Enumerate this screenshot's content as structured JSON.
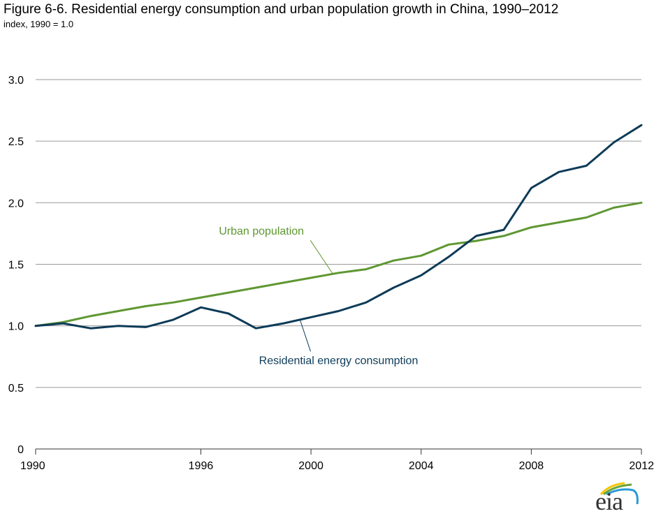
{
  "title": "Figure 6-6. Residential energy consumption and urban population growth in China, 1990–2012",
  "subtitle": "index, 1990 = 1.0",
  "logo": {
    "text": "eia"
  },
  "chart_data": {
    "type": "line",
    "title": "Figure 6-6. Residential energy consumption and urban population growth in China, 1990–2012",
    "subtitle": "index, 1990 = 1.0",
    "xlabel": "",
    "ylabel": "index, 1990 = 1.0",
    "x": [
      1990,
      1991,
      1992,
      1993,
      1994,
      1995,
      1996,
      1997,
      1998,
      1999,
      2000,
      2001,
      2002,
      2003,
      2004,
      2005,
      2006,
      2007,
      2008,
      2009,
      2010,
      2011,
      2012
    ],
    "xlim": [
      1990,
      2012
    ],
    "ylim": [
      0,
      3.0
    ],
    "xticks": [
      {
        "value": 1990,
        "label": "1990"
      },
      {
        "value": 1996,
        "label": "1996"
      },
      {
        "value": 2000,
        "label": "2000"
      },
      {
        "value": 2004,
        "label": "2004"
      },
      {
        "value": 2008,
        "label": "2008"
      },
      {
        "value": 2012,
        "label": "2012"
      }
    ],
    "yticks": [
      {
        "value": 0,
        "label": "0"
      },
      {
        "value": 0.5,
        "label": "0.5"
      },
      {
        "value": 1.0,
        "label": "1.0"
      },
      {
        "value": 1.5,
        "label": "1.5"
      },
      {
        "value": 2.0,
        "label": "2.0"
      },
      {
        "value": 2.5,
        "label": "2.5"
      },
      {
        "value": 3.0,
        "label": "3.0"
      }
    ],
    "grid": "horizontal",
    "legend": "inline labels with leader lines",
    "series": [
      {
        "name": "Urban population",
        "color": "#5e9732",
        "values": [
          1.0,
          1.03,
          1.08,
          1.12,
          1.16,
          1.19,
          1.23,
          1.27,
          1.31,
          1.35,
          1.39,
          1.43,
          1.46,
          1.53,
          1.57,
          1.66,
          1.69,
          1.73,
          1.8,
          1.84,
          1.88,
          1.96,
          2.0
        ],
        "label": {
          "text": "Urban population",
          "anchor_x": 2000.8,
          "anchor_y": 1.42,
          "text_x": 1998.2,
          "text_y": 1.74
        }
      },
      {
        "name": "Residential energy consumption",
        "color": "#0d3b58",
        "values": [
          1.0,
          1.02,
          0.98,
          1.0,
          0.99,
          1.05,
          1.15,
          1.1,
          0.98,
          1.02,
          1.07,
          1.12,
          1.19,
          1.31,
          1.41,
          1.56,
          1.73,
          1.78,
          2.12,
          2.25,
          2.3,
          2.49,
          2.63
        ],
        "label": {
          "text": "Residential energy consumption",
          "anchor_x": 1999.6,
          "anchor_y": 1.05,
          "text_x": 2001.0,
          "text_y": 0.69
        }
      }
    ]
  }
}
